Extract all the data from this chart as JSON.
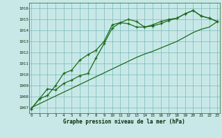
{
  "x": [
    0,
    1,
    2,
    3,
    4,
    5,
    6,
    7,
    8,
    9,
    10,
    11,
    12,
    13,
    14,
    15,
    16,
    17,
    18,
    19,
    20,
    21,
    22,
    23
  ],
  "line1": [
    1006.9,
    1007.8,
    1008.1,
    1009.0,
    1010.1,
    1010.4,
    1011.3,
    1011.8,
    1012.2,
    1013.0,
    1014.5,
    1014.7,
    1015.0,
    1014.8,
    1014.3,
    1014.4,
    1014.6,
    1014.9,
    1015.1,
    1015.5,
    1015.8,
    1015.3,
    1015.1,
    1014.8
  ],
  "line2": [
    1006.9,
    1007.8,
    1008.7,
    1008.6,
    1009.2,
    1009.5,
    1009.9,
    1010.1,
    1011.5,
    1012.8,
    1014.2,
    1014.7,
    1014.6,
    1014.3,
    1014.3,
    1014.5,
    1014.8,
    1015.0,
    1015.1,
    1015.5,
    1015.8,
    1015.3,
    1015.1,
    1014.8
  ],
  "line3": [
    1007.0,
    1007.35,
    1007.7,
    1008.05,
    1008.4,
    1008.75,
    1009.1,
    1009.45,
    1009.8,
    1010.15,
    1010.5,
    1010.85,
    1011.2,
    1011.55,
    1011.85,
    1012.1,
    1012.4,
    1012.7,
    1013.0,
    1013.4,
    1013.8,
    1014.1,
    1014.3,
    1014.8
  ],
  "line_color": "#1a6b1a",
  "bg_color": "#c8e8e8",
  "grid_color": "#7ab8b8",
  "title": "Graphe pression niveau de la mer (hPa)",
  "ylim": [
    1006.5,
    1016.5
  ],
  "xlim": [
    -0.3,
    23.3
  ],
  "yticks": [
    1007,
    1008,
    1009,
    1010,
    1011,
    1012,
    1013,
    1014,
    1015,
    1016
  ],
  "xticks": [
    0,
    1,
    2,
    3,
    4,
    5,
    6,
    7,
    8,
    9,
    10,
    11,
    12,
    13,
    14,
    15,
    16,
    17,
    18,
    19,
    20,
    21,
    22,
    23
  ]
}
